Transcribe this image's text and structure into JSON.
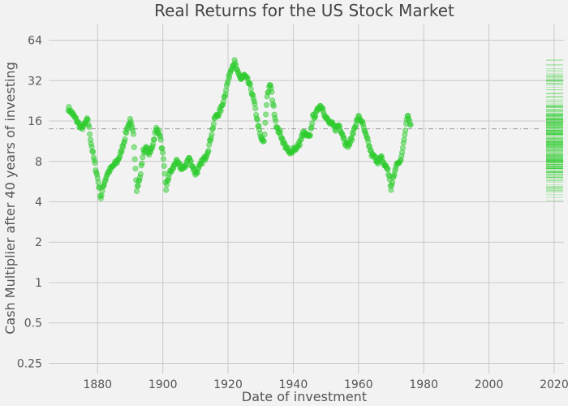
{
  "chart_data": {
    "type": "scatter",
    "title": "Real Returns for the US Stock Market",
    "xlabel": "Date of investment",
    "ylabel": "Cash Multiplier after 40 years of investing",
    "xlim": [
      1865,
      2023
    ],
    "ylim": [
      0.21,
      84
    ],
    "y_scale": "log2",
    "grid": true,
    "legend": "none",
    "x_ticks": [
      1880,
      1900,
      1920,
      1940,
      1960,
      1980,
      2000,
      2020
    ],
    "y_ticks": [
      {
        "value": 0.25,
        "label": "0.25"
      },
      {
        "value": 0.5,
        "label": "0.5"
      },
      {
        "value": 1,
        "label": "1"
      },
      {
        "value": 2,
        "label": "2"
      },
      {
        "value": 4,
        "label": "4"
      },
      {
        "value": 8,
        "label": "8"
      },
      {
        "value": 16,
        "label": "16"
      },
      {
        "value": 32,
        "label": "32"
      },
      {
        "value": 64,
        "label": "64"
      }
    ],
    "reference_line": {
      "y": 14,
      "style": "dash-dot"
    },
    "series": [
      {
        "color": "#2ecc2e",
        "x": [
          1871,
          1872,
          1873,
          1874,
          1875,
          1876,
          1877,
          1878,
          1879,
          1880,
          1881,
          1882,
          1883,
          1884,
          1885,
          1886,
          1887,
          1888,
          1889,
          1890,
          1891,
          1892,
          1893,
          1894,
          1895,
          1896,
          1897,
          1898,
          1899,
          1900,
          1901,
          1902,
          1903,
          1904,
          1905,
          1906,
          1907,
          1908,
          1909,
          1910,
          1911,
          1912,
          1913,
          1914,
          1915,
          1916,
          1917,
          1918,
          1919,
          1920,
          1921,
          1922,
          1923,
          1924,
          1925,
          1926,
          1927,
          1928,
          1929,
          1930,
          1931,
          1932,
          1933,
          1934,
          1935,
          1936,
          1937,
          1938,
          1939,
          1940,
          1941,
          1942,
          1943,
          1944,
          1945,
          1946,
          1947,
          1948,
          1949,
          1950,
          1951,
          1952,
          1953,
          1954,
          1955,
          1956,
          1957,
          1958,
          1959,
          1960,
          1961,
          1962,
          1963,
          1964,
          1965,
          1966,
          1967,
          1968,
          1969,
          1970,
          1971,
          1972,
          1973,
          1974,
          1975,
          1976
        ],
        "values": [
          20,
          18.5,
          17,
          15.5,
          14,
          15,
          16.5,
          11,
          8,
          6,
          4.3,
          5.5,
          6.5,
          7,
          7.5,
          8,
          9,
          11,
          14,
          16,
          12.5,
          5,
          6,
          9.5,
          10,
          9,
          11,
          14,
          13,
          9,
          5,
          6.5,
          7,
          8,
          7.5,
          7,
          7.5,
          8.5,
          7.5,
          6.5,
          7,
          8,
          8.5,
          10,
          13,
          17,
          18,
          20,
          25,
          32,
          40,
          44,
          36,
          33,
          35,
          32,
          28,
          22,
          16,
          12,
          11,
          25,
          30,
          20,
          14,
          13,
          11,
          10,
          9,
          10,
          10,
          11,
          13,
          12.5,
          12,
          17,
          18,
          21,
          20,
          17,
          15.5,
          15,
          14,
          15,
          13,
          11,
          10.5,
          12,
          15,
          17,
          16,
          13,
          11,
          9,
          8.5,
          8,
          8.5,
          7.5,
          7,
          5,
          6.5,
          8,
          8,
          12,
          18,
          15
        ]
      }
    ]
  }
}
